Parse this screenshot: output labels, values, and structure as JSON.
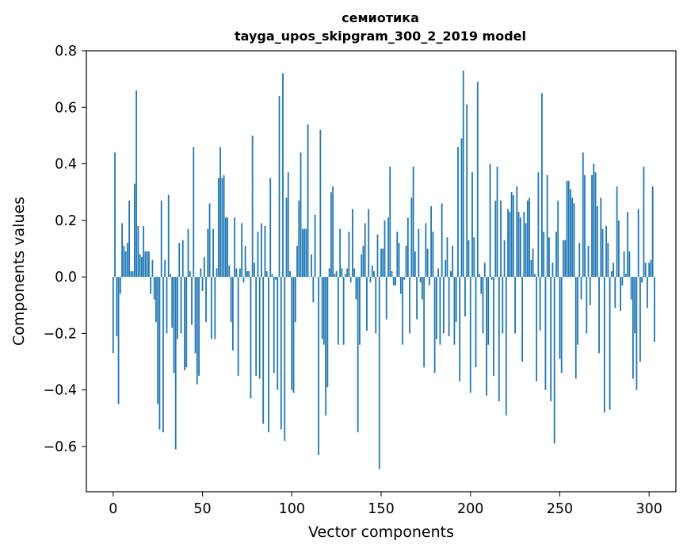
{
  "chart_data": {
    "type": "bar",
    "title": "семиотика",
    "subtitle": "tayga_upos_skipgram_300_2_2019 model",
    "xlabel": "Vector components",
    "ylabel": "Components values",
    "xlim": [
      -15,
      315
    ],
    "ylim": [
      -0.76,
      0.8
    ],
    "xticks": [
      0,
      50,
      100,
      150,
      200,
      250,
      300
    ],
    "xtick_labels": [
      "0",
      "50",
      "100",
      "150",
      "200",
      "250",
      "300"
    ],
    "yticks": [
      -0.6,
      -0.4,
      -0.2,
      0.0,
      0.2,
      0.4,
      0.6,
      0.8
    ],
    "ytick_labels": [
      "−0.6",
      "−0.4",
      "−0.2",
      "0.0",
      "0.2",
      "0.4",
      "0.6",
      "0.8"
    ],
    "bar_color": "#1f77b4",
    "grid": false,
    "values": [
      -0.27,
      0.44,
      -0.21,
      -0.45,
      -0.06,
      0.19,
      0.11,
      0.09,
      0.12,
      0.27,
      0.02,
      0.02,
      0.33,
      0.66,
      0.18,
      0.08,
      0.07,
      0.18,
      0.09,
      0.09,
      0.09,
      -0.06,
      0.06,
      -0.08,
      -0.16,
      -0.45,
      -0.54,
      0.27,
      -0.55,
      0.06,
      -0.2,
      0.29,
      0.01,
      -0.18,
      -0.34,
      -0.61,
      -0.22,
      0.12,
      -0.2,
      0.13,
      -0.33,
      -0.32,
      0.17,
      0.02,
      -0.17,
      0.46,
      -0.27,
      -0.38,
      -0.35,
      0.03,
      -0.05,
      0.07,
      -0.16,
      0.17,
      0.26,
      -0.22,
      0.17,
      -0.22,
      0.03,
      0.35,
      0.46,
      0.35,
      0.36,
      0.21,
      0.21,
      0.04,
      -0.16,
      -0.26,
      0.21,
      0.03,
      -0.35,
      0.03,
      0.19,
      -0.02,
      0.11,
      0.02,
      0.02,
      -0.43,
      0.5,
      0.05,
      -0.35,
      0.16,
      -0.36,
      0.19,
      -0.52,
      0.18,
      0.02,
      -0.55,
      0.35,
      0.01,
      -0.34,
      -0.01,
      -0.4,
      0.64,
      -0.54,
      0.72,
      -0.58,
      0.28,
      0.37,
      0.02,
      -0.4,
      -0.41,
      -0.16,
      0.11,
      0.27,
      0.44,
      0.17,
      0.17,
      0.17,
      0.54,
      0.0,
      0.08,
      -0.09,
      0.22,
      0.0,
      -0.63,
      0.52,
      -0.22,
      -0.24,
      -0.49,
      -0.39,
      0.03,
      0.3,
      0.32,
      0.01,
      0.02,
      -0.24,
      0.17,
      0.03,
      -0.24,
      0.01,
      0.03,
      0.16,
      -0.02,
      0.24,
      0.03,
      -0.08,
      -0.55,
      -0.24,
      0.08,
      0.11,
      0.19,
      -0.19,
      0.24,
      -0.02,
      0.04,
      0.02,
      -0.2,
      0.15,
      -0.68,
      0.1,
      0.1,
      0.2,
      -0.15,
      0.21,
      0.39,
      0.02,
      -0.03,
      -0.03,
      0.16,
      0.12,
      -0.06,
      -0.24,
      -0.01,
      0.11,
      0.21,
      -0.2,
      0.28,
      0.39,
      0.09,
      -0.15,
      0.17,
      -0.02,
      -0.08,
      -0.32,
      0.19,
      0.1,
      -0.03,
      0.25,
      0.16,
      -0.34,
      -0.22,
      0.03,
      -0.24,
      0.26,
      -0.2,
      0.06,
      0.14,
      -0.21,
      0.02,
      0.11,
      -0.24,
      -0.16,
      0.46,
      -0.37,
      0.49,
      0.73,
      -0.14,
      0.61,
      0.13,
      -0.41,
      0.37,
      0.14,
      -0.32,
      0.69,
      0.01,
      -0.06,
      -0.2,
      0.05,
      -0.42,
      -0.24,
      0.4,
      -0.01,
      -0.35,
      0.27,
      0.39,
      -0.44,
      0.27,
      -0.2,
      0.13,
      -0.49,
      0.24,
      0.23,
      0.3,
      0.29,
      -0.2,
      0.32,
      0.23,
      0.21,
      -0.3,
      0.23,
      0.19,
      0.27,
      0.28,
      0.06,
      0.1,
      0.01,
      -0.37,
      0.37,
      -0.19,
      0.65,
      0.16,
      -0.4,
      0.36,
      0.14,
      -0.44,
      0.05,
      -0.59,
      0.16,
      0.27,
      -0.29,
      -0.34,
      0.13,
      0.13,
      0.34,
      0.34,
      0.31,
      0.28,
      0.26,
      -0.36,
      -0.24,
      0.12,
      -0.08,
      0.44,
      0.36,
      -0.2,
      0.11,
      -0.1,
      0.36,
      0.4,
      0.37,
      0.25,
      -0.27,
      0.28,
      0.17,
      -0.48,
      0.18,
      0.12,
      -0.47,
      0.02,
      0.05,
      -0.11,
      0.32,
      0.2,
      -0.12,
      -0.03,
      0.09,
      0.01,
      0.23,
      0.09,
      -0.08,
      -0.36,
      -0.2,
      -0.4,
      0.24,
      -0.3,
      -0.02,
      0.39,
      0.05,
      -0.11,
      0.05,
      0.06,
      0.32,
      -0.23
    ]
  }
}
